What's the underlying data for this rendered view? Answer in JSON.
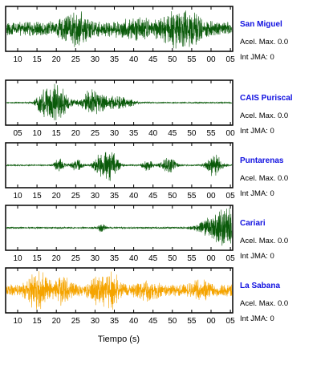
{
  "chart_data": {
    "type": "line",
    "xlabel": "Tiempo (s)",
    "accel_label": "Acel. Max.",
    "int_label": "Int JMA:",
    "panels": [
      {
        "station": "San Miguel",
        "accel": "0.0",
        "int": "0",
        "color": "#0a5a0a",
        "ticks": [
          "10",
          "15",
          "20",
          "25",
          "30",
          "35",
          "40",
          "45",
          "50",
          "55",
          "00",
          "05"
        ],
        "first_tick_offset": 3,
        "baseline": 0.35,
        "bursts": [
          {
            "center": 20,
            "width": 3,
            "amp": 0.55
          },
          {
            "center": 47,
            "width": 2.5,
            "amp": 0.35
          },
          {
            "center": 51,
            "width": 2.8,
            "amp": 0.9
          },
          {
            "center": 37,
            "width": 4,
            "amp": 0.25
          }
        ]
      },
      {
        "station": "CAIS Puriscal",
        "accel": "0.0",
        "int": "0",
        "color": "#0a5a0a",
        "ticks": [
          "05",
          "10",
          "15",
          "20",
          "25",
          "30",
          "35",
          "40",
          "45",
          "50",
          "55",
          "00"
        ],
        "first_tick_offset": 3,
        "baseline": 0.03,
        "bursts": [
          {
            "center": 14,
            "width": 2.5,
            "amp": 0.95
          },
          {
            "center": 11,
            "width": 1.5,
            "amp": 0.5
          },
          {
            "center": 24,
            "width": 2.0,
            "amp": 0.6
          },
          {
            "center": 29,
            "width": 2.5,
            "amp": 0.35
          },
          {
            "center": 34,
            "width": 2,
            "amp": 0.2
          }
        ]
      },
      {
        "station": "Puntarenas",
        "accel": "0.0",
        "int": "0",
        "color": "#0a5a0a",
        "ticks": [
          "10",
          "15",
          "20",
          "25",
          "30",
          "35",
          "40",
          "45",
          "50",
          "55",
          "00",
          "05"
        ],
        "first_tick_offset": 3,
        "baseline": 0.03,
        "bursts": [
          {
            "center": 15,
            "width": 1.0,
            "amp": 0.35
          },
          {
            "center": 20,
            "width": 1.2,
            "amp": 0.3
          },
          {
            "center": 26,
            "width": 1.0,
            "amp": 0.3
          },
          {
            "center": 29,
            "width": 1.8,
            "amp": 0.85
          },
          {
            "center": 40,
            "width": 1.0,
            "amp": 0.3
          },
          {
            "center": 46,
            "width": 1.4,
            "amp": 0.45
          },
          {
            "center": 59,
            "width": 1.6,
            "amp": 0.55
          }
        ]
      },
      {
        "station": "Cariari",
        "accel": "0.0",
        "int": "0",
        "color": "#0a5a0a",
        "ticks": [
          "10",
          "15",
          "20",
          "25",
          "30",
          "35",
          "40",
          "45",
          "50",
          "55",
          "00",
          "05"
        ],
        "first_tick_offset": 3,
        "baseline": 0.04,
        "bursts": [
          {
            "center": 27,
            "width": 0.8,
            "amp": 0.2
          },
          {
            "center": 63,
            "width": 3.5,
            "amp": 0.95
          },
          {
            "center": 58,
            "width": 3,
            "amp": 0.25
          }
        ]
      },
      {
        "station": "La Sabana",
        "accel": "0.0",
        "int": "0",
        "color": "#f5a400",
        "ticks": [
          "10",
          "15",
          "20",
          "25",
          "30",
          "35",
          "40",
          "45",
          "50",
          "55",
          "00",
          "05"
        ],
        "first_tick_offset": 3,
        "baseline": 0.3,
        "bursts": [
          {
            "center": 9,
            "width": 2.0,
            "amp": 0.9
          },
          {
            "center": 16,
            "width": 1.5,
            "amp": 0.5
          },
          {
            "center": 26,
            "width": 1.5,
            "amp": 0.6
          },
          {
            "center": 30,
            "width": 1.5,
            "amp": 0.7
          },
          {
            "center": 40,
            "width": 2,
            "amp": 0.35
          },
          {
            "center": 55,
            "width": 2,
            "amp": 0.3
          }
        ]
      }
    ]
  }
}
